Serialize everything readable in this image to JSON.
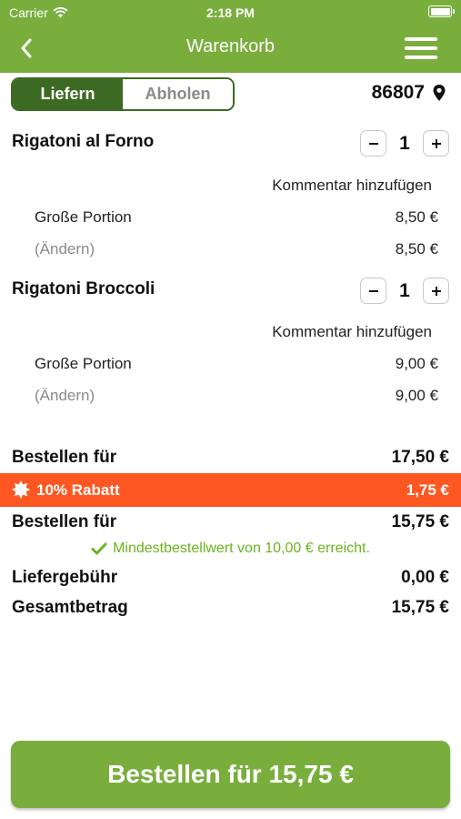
{
  "status_bar": {
    "carrier": "Carrier",
    "time": "2:18 PM"
  },
  "nav": {
    "title": "Warenkorb"
  },
  "delivery_toggle": {
    "deliver_label": "Liefern",
    "pickup_label": "Abholen",
    "selected": "Liefern"
  },
  "location": {
    "zip": "86807"
  },
  "cart": {
    "comment_label": "Kommentar hinzufügen",
    "items": [
      {
        "name": "Rigatoni al Forno",
        "quantity": "1",
        "option": "Große Portion",
        "option_price": "8,50 €",
        "change_label": "(Ändern)",
        "total": "8,50 €"
      },
      {
        "name": "Rigatoni Broccoli",
        "quantity": "1",
        "option": "Große Portion",
        "option_price": "9,00 €",
        "change_label": "(Ändern)",
        "total": "9,00 €"
      }
    ]
  },
  "summary": {
    "subtotal_label": "Bestellen für",
    "subtotal_value": "17,50 €",
    "discount_label": "10% Rabatt",
    "discount_value": "1,75 €",
    "discounted_label": "Bestellen für",
    "discounted_value": "15,75 €",
    "min_order_text": "Mindestbestellwert von 10,00 € erreicht.",
    "delivery_fee_label": "Liefergebühr",
    "delivery_fee_value": "0,00 €",
    "total_label": "Gesamtbetrag",
    "total_value": "15,75 €"
  },
  "checkout": {
    "button_label": "Bestellen für 15,75 €"
  },
  "colors": {
    "header": "#79ae3d",
    "toggle_active": "#3d6a22",
    "discount": "#ff5722",
    "success": "#6ab51f"
  }
}
